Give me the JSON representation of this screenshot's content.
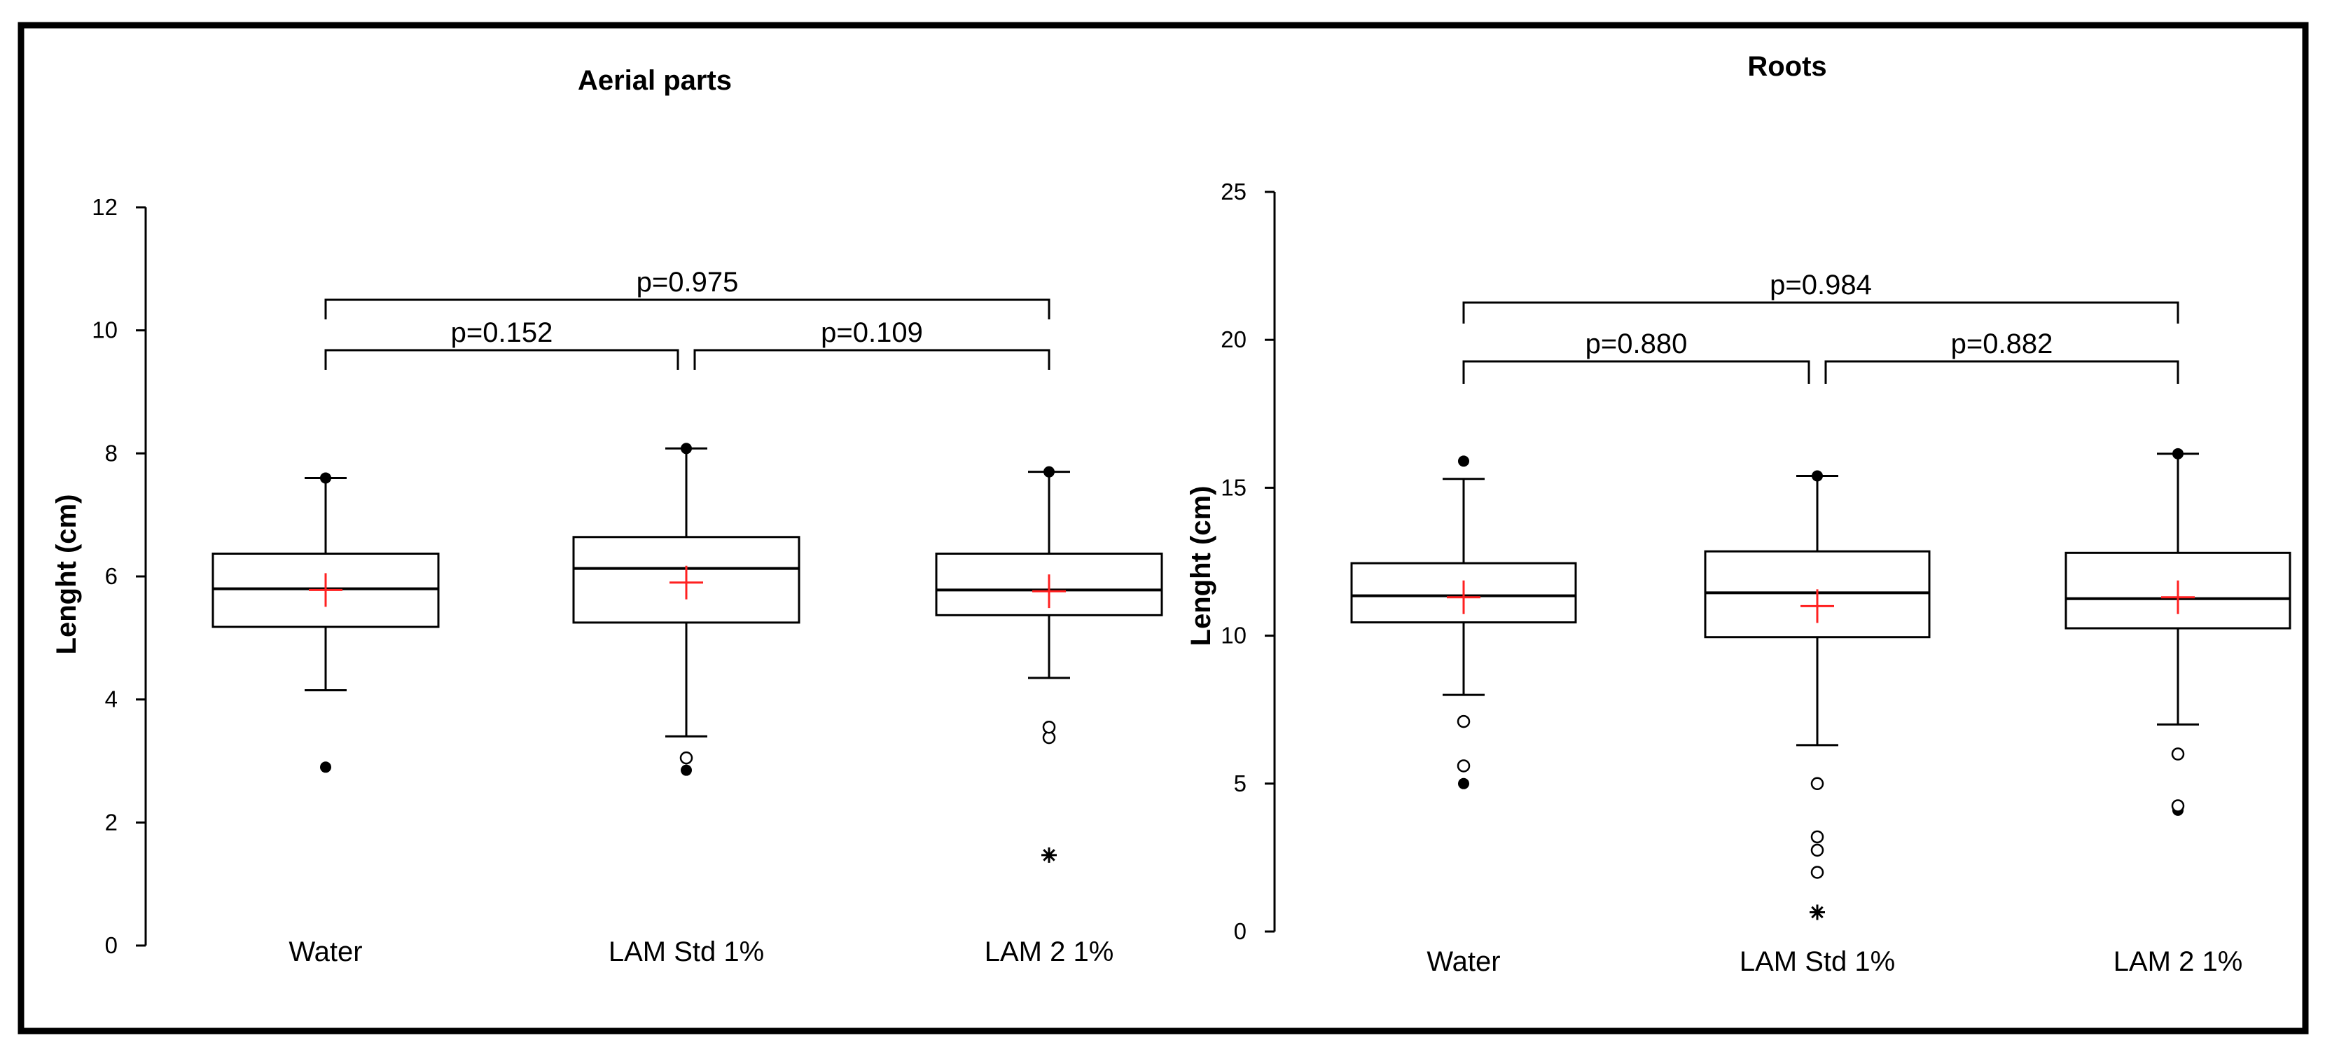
{
  "chart_data": [
    {
      "type": "boxplot",
      "title": "Aerial parts",
      "xlabel": "",
      "ylabel": "Lenght (cm)",
      "ylim": [
        0,
        12
      ],
      "yticks": [
        "0",
        "2",
        "4",
        "6",
        "8",
        "10",
        "12"
      ],
      "categories": [
        "Water",
        "LAM Std 1%",
        "LAM 2 1%"
      ],
      "boxes": [
        {
          "whisker_low": 4.15,
          "q1": 5.18,
          "median": 5.8,
          "q3": 6.37,
          "whisker_high": 7.6,
          "mean": 5.78,
          "max_point": 7.6,
          "min_point": 2.9,
          "outliers_open": [],
          "extreme_outliers": []
        },
        {
          "whisker_low": 3.4,
          "q1": 5.25,
          "median": 6.13,
          "q3": 6.64,
          "whisker_high": 8.08,
          "mean": 5.9,
          "max_point": 8.08,
          "min_point": 2.85,
          "outliers_open": [
            3.05
          ],
          "extreme_outliers": []
        },
        {
          "whisker_low": 4.35,
          "q1": 5.37,
          "median": 5.78,
          "q3": 6.37,
          "whisker_high": 7.7,
          "mean": 5.76,
          "max_point": 7.7,
          "min_point": null,
          "outliers_open": [
            3.38,
            3.55
          ],
          "extreme_outliers": [
            1.47
          ]
        }
      ],
      "comparisons": [
        {
          "from": 0,
          "to": 1,
          "label": "p=0.152"
        },
        {
          "from": 1,
          "to": 2,
          "label": "p=0.109"
        },
        {
          "from": 0,
          "to": 2,
          "label": "p=0.975"
        }
      ]
    },
    {
      "type": "boxplot",
      "title": "Roots",
      "xlabel": "",
      "ylabel": "Lenght (cm)",
      "ylim": [
        0,
        25
      ],
      "yticks": [
        "0",
        "5",
        "10",
        "15",
        "20",
        "25"
      ],
      "categories": [
        "Water",
        "LAM Std 1%",
        "LAM 2 1%"
      ],
      "boxes": [
        {
          "whisker_low": 8.0,
          "q1": 10.45,
          "median": 11.35,
          "q3": 12.45,
          "whisker_high": 15.3,
          "mean": 11.3,
          "max_point": 15.9,
          "min_point": 5.0,
          "outliers_open": [
            5.6,
            7.1
          ],
          "extreme_outliers": []
        },
        {
          "whisker_low": 6.3,
          "q1": 9.95,
          "median": 11.45,
          "q3": 12.85,
          "whisker_high": 15.4,
          "mean": 11.0,
          "max_point": 15.4,
          "min_point": null,
          "outliers_open": [
            2.0,
            2.75,
            3.2,
            5.0
          ],
          "extreme_outliers": [
            0.65
          ]
        },
        {
          "whisker_low": 7.0,
          "q1": 10.25,
          "median": 11.25,
          "q3": 12.8,
          "whisker_high": 16.15,
          "mean": 11.3,
          "max_point": 16.15,
          "min_point": 4.1,
          "outliers_open": [
            4.25,
            6.0
          ],
          "extreme_outliers": []
        }
      ],
      "comparisons": [
        {
          "from": 0,
          "to": 1,
          "label": "p=0.880"
        },
        {
          "from": 1,
          "to": 2,
          "label": "p=0.882"
        },
        {
          "from": 0,
          "to": 2,
          "label": "p=0.984"
        }
      ]
    }
  ]
}
